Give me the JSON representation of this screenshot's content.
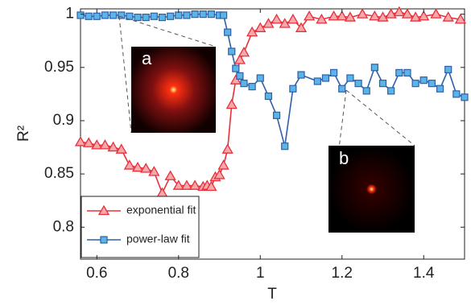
{
  "chart_data": {
    "type": "line",
    "xlabel": "T",
    "ylabel": "R²",
    "xlim": [
      0.56,
      1.5
    ],
    "ylim": [
      0.77,
      1.005
    ],
    "xticks": [
      0.6,
      0.8,
      1,
      1.2,
      1.4
    ],
    "yticks": [
      0.8,
      0.85,
      0.9,
      0.95,
      1
    ],
    "legend": "lower left",
    "annotations": [
      "a",
      "b"
    ],
    "series": [
      {
        "name": "exponential fit",
        "color": "#e8303a",
        "marker": "triangle",
        "x": [
          0.56,
          0.58,
          0.6,
          0.62,
          0.64,
          0.66,
          0.68,
          0.7,
          0.72,
          0.74,
          0.76,
          0.78,
          0.8,
          0.82,
          0.84,
          0.86,
          0.87,
          0.88,
          0.89,
          0.9,
          0.91,
          0.92,
          0.93,
          0.94,
          0.95,
          0.96,
          0.98,
          1.0,
          1.02,
          1.04,
          1.06,
          1.08,
          1.1,
          1.12,
          1.15,
          1.18,
          1.2,
          1.22,
          1.25,
          1.28,
          1.3,
          1.32,
          1.34,
          1.36,
          1.38,
          1.4,
          1.43,
          1.46,
          1.49
        ],
        "values": [
          0.88,
          0.879,
          0.877,
          0.877,
          0.875,
          0.873,
          0.858,
          0.856,
          0.855,
          0.852,
          0.832,
          0.848,
          0.839,
          0.839,
          0.839,
          0.838,
          0.839,
          0.838,
          0.847,
          0.849,
          0.858,
          0.873,
          0.915,
          0.938,
          0.957,
          0.964,
          0.983,
          0.987,
          0.991,
          0.995,
          0.991,
          0.995,
          0.987,
          0.998,
          0.995,
          0.998,
          0.998,
          0.997,
          1.0,
          0.998,
          0.997,
          1.0,
          1.002,
          1.0,
          0.997,
          0.998,
          1.0,
          0.997,
          0.995
        ]
      },
      {
        "name": "power-law fit",
        "color": "#2f5fa8",
        "marker": "square",
        "x": [
          0.56,
          0.58,
          0.6,
          0.62,
          0.64,
          0.66,
          0.68,
          0.7,
          0.72,
          0.74,
          0.76,
          0.78,
          0.8,
          0.82,
          0.84,
          0.86,
          0.88,
          0.9,
          0.91,
          0.92,
          0.93,
          0.94,
          0.95,
          0.96,
          0.98,
          1.0,
          1.02,
          1.04,
          1.06,
          1.08,
          1.1,
          1.14,
          1.16,
          1.18,
          1.2,
          1.22,
          1.24,
          1.26,
          1.28,
          1.3,
          1.32,
          1.34,
          1.36,
          1.38,
          1.4,
          1.42,
          1.44,
          1.46,
          1.48,
          1.5
        ],
        "values": [
          0.999,
          0.998,
          0.998,
          0.999,
          0.999,
          0.999,
          0.998,
          0.997,
          0.997,
          0.998,
          0.997,
          0.998,
          0.999,
          0.999,
          1.0,
          1.0,
          1.0,
          0.999,
          0.999,
          0.983,
          0.965,
          0.949,
          0.942,
          0.935,
          0.932,
          0.94,
          0.923,
          0.905,
          0.876,
          0.93,
          0.943,
          0.937,
          0.94,
          0.945,
          0.93,
          0.94,
          0.935,
          0.928,
          0.95,
          0.935,
          0.928,
          0.945,
          0.945,
          0.935,
          0.938,
          0.935,
          0.93,
          0.948,
          0.925,
          0.922
        ]
      }
    ]
  }
}
